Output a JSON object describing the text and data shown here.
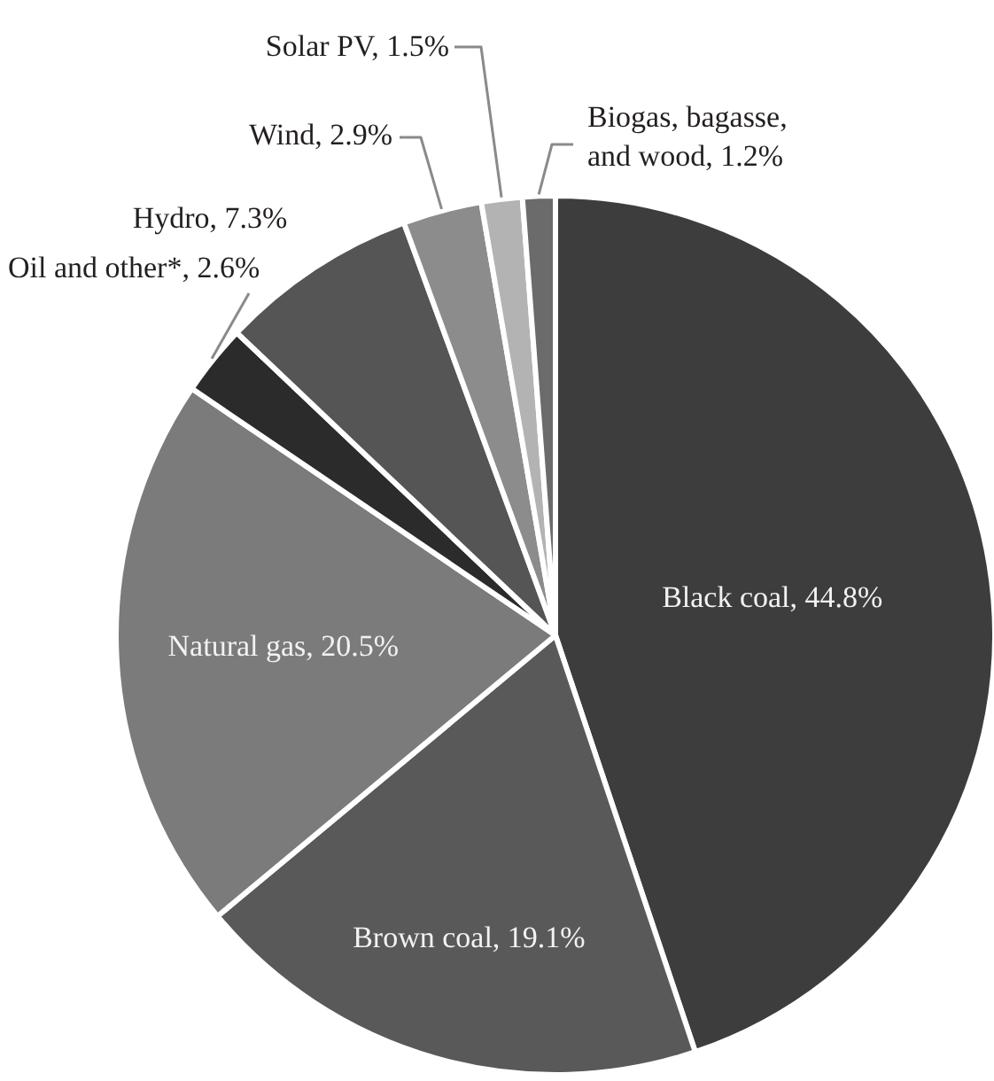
{
  "chart_data": {
    "type": "pie",
    "categories": [
      "Black coal",
      "Brown coal",
      "Natural gas",
      "Oil and other*",
      "Hydro",
      "Wind",
      "Solar PV",
      "Biogas, bagasse, and wood"
    ],
    "values": [
      44.8,
      19.1,
      20.5,
      2.6,
      7.3,
      2.9,
      1.5,
      1.2
    ],
    "value_labels": [
      "44.8%",
      "19.1%",
      "20.5%",
      "2.6%",
      "7.3%",
      "2.9%",
      "1.5%",
      "1.2%"
    ],
    "colors": [
      "#3d3d3d",
      "#595959",
      "#7b7b7b",
      "#2b2b2b",
      "#555555",
      "#8c8c8c",
      "#b3b3b3",
      "#6b6b6b"
    ]
  }
}
